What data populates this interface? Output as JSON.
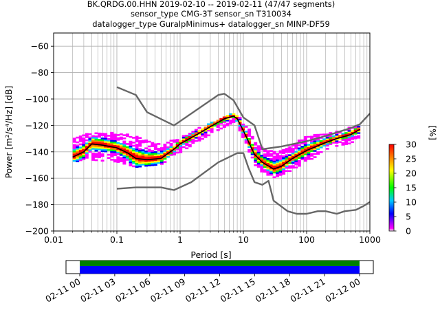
{
  "title": {
    "line1": "BK.QRDG.00.HHN   2019-02-10 -- 2019-02-11  (47/47 segments)",
    "line2": "sensor_type CMG-3T sensor_sn T310034",
    "line3": "datalogger_type GuralpMinimus+ datalogger_sn MINP-DF59"
  },
  "chart_data": {
    "type": "heatmap",
    "xscale": "log",
    "xlim": [
      0.01,
      1000
    ],
    "ylim": [
      -200,
      -50
    ],
    "xticks": [
      {
        "value": 0.01,
        "label": "0.01"
      },
      {
        "value": 0.1,
        "label": "0.1"
      },
      {
        "value": 1,
        "label": "1"
      },
      {
        "value": 10,
        "label": "10"
      },
      {
        "value": 100,
        "label": "100"
      },
      {
        "value": 1000,
        "label": "1000"
      }
    ],
    "yticks": [
      -60,
      -80,
      -100,
      -120,
      -140,
      -160,
      -180,
      -200
    ],
    "xlabel": "Period [s]",
    "ylabel": "Power [m²/s⁴/Hz] [dB]",
    "grid": true,
    "colorbar": {
      "label": "[%]",
      "min": 0,
      "max": 30,
      "ticks": [
        0,
        5,
        10,
        15,
        20,
        25,
        30
      ],
      "colors": [
        "#ffffff",
        "#ff00ff",
        "#0000ff",
        "#00c8ff",
        "#00ff00",
        "#ffff00",
        "#ff8000",
        "#ff0000"
      ]
    },
    "mode_line": {
      "color": "#000000",
      "points": [
        [
          0.02,
          -144
        ],
        [
          0.03,
          -140
        ],
        [
          0.04,
          -134
        ],
        [
          0.06,
          -135
        ],
        [
          0.1,
          -137
        ],
        [
          0.15,
          -141
        ],
        [
          0.2,
          -145
        ],
        [
          0.3,
          -146
        ],
        [
          0.5,
          -145
        ],
        [
          0.8,
          -138
        ],
        [
          1,
          -134
        ],
        [
          2,
          -126
        ],
        [
          3,
          -121
        ],
        [
          5,
          -115
        ],
        [
          7,
          -113
        ],
        [
          8,
          -115
        ],
        [
          10,
          -124
        ],
        [
          15,
          -142
        ],
        [
          20,
          -148
        ],
        [
          30,
          -153
        ],
        [
          40,
          -151
        ],
        [
          60,
          -145
        ],
        [
          100,
          -139
        ],
        [
          200,
          -133
        ],
        [
          300,
          -130
        ],
        [
          500,
          -127
        ],
        [
          700,
          -123
        ]
      ]
    },
    "envelope_lines": {
      "color": "#666666",
      "upper": [
        [
          0.1,
          -91
        ],
        [
          0.2,
          -97
        ],
        [
          0.3,
          -110
        ],
        [
          0.8,
          -120
        ],
        [
          4,
          -97
        ],
        [
          5,
          -96
        ],
        [
          7,
          -101
        ],
        [
          10,
          -114
        ],
        [
          15,
          -120
        ],
        [
          20,
          -138
        ],
        [
          40,
          -136
        ],
        [
          100,
          -132
        ],
        [
          200,
          -128
        ],
        [
          500,
          -122
        ],
        [
          700,
          -119
        ],
        [
          1000,
          -111
        ]
      ],
      "lower": [
        [
          0.1,
          -168
        ],
        [
          0.2,
          -167
        ],
        [
          0.5,
          -167
        ],
        [
          0.8,
          -169
        ],
        [
          1.5,
          -163
        ],
        [
          4,
          -148
        ],
        [
          8,
          -141
        ],
        [
          10,
          -141
        ],
        [
          12,
          -152
        ],
        [
          15,
          -163
        ],
        [
          20,
          -165
        ],
        [
          25,
          -162
        ],
        [
          30,
          -177
        ],
        [
          50,
          -185
        ],
        [
          70,
          -187
        ],
        [
          100,
          -187
        ],
        [
          150,
          -185
        ],
        [
          200,
          -185
        ],
        [
          300,
          -187
        ],
        [
          400,
          -185
        ],
        [
          600,
          -184
        ],
        [
          800,
          -181
        ],
        [
          1000,
          -178
        ]
      ]
    },
    "spread_band": {
      "points": [
        [
          0.02,
          -131,
          -149
        ],
        [
          0.03,
          -127,
          -146
        ],
        [
          0.05,
          -126,
          -147
        ],
        [
          0.1,
          -126,
          -148
        ],
        [
          0.2,
          -128,
          -152
        ],
        [
          0.3,
          -132,
          -151
        ],
        [
          0.5,
          -134,
          -150
        ],
        [
          1,
          -130,
          -141
        ],
        [
          2,
          -122,
          -132
        ],
        [
          4,
          -116,
          -124
        ],
        [
          7,
          -111,
          -118
        ],
        [
          10,
          -116,
          -130
        ],
        [
          15,
          -130,
          -150
        ],
        [
          20,
          -138,
          -156
        ],
        [
          30,
          -140,
          -160
        ],
        [
          50,
          -138,
          -156
        ],
        [
          100,
          -128,
          -148
        ],
        [
          200,
          -126,
          -140
        ],
        [
          300,
          -124,
          -136
        ],
        [
          500,
          -122,
          -134
        ],
        [
          700,
          -120,
          -129
        ]
      ]
    }
  },
  "timeline": {
    "ticks": [
      "02-11 00",
      "02-11 03",
      "02-11 06",
      "02-11 09",
      "02-11 12",
      "02-11 15",
      "02-11 18",
      "02-11 21",
      "02-12 00"
    ],
    "segment_colors": {
      "available": "#008000",
      "used": "#0000ff"
    }
  }
}
